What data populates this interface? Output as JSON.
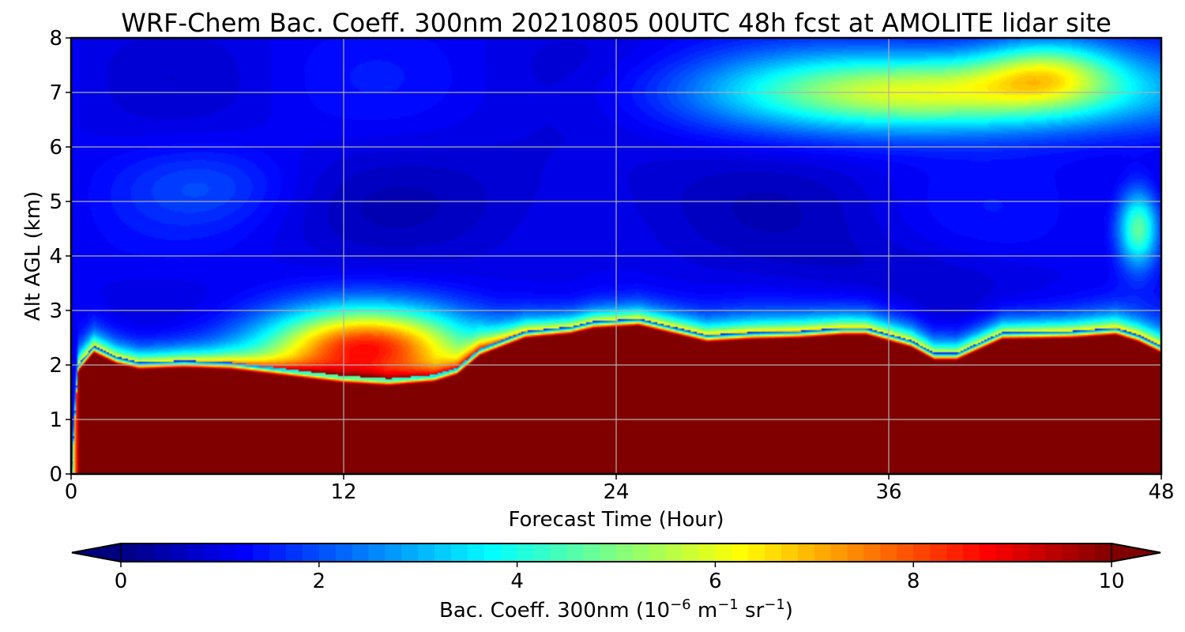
{
  "chart_data": {
    "type": "heatmap",
    "title": "WRF-Chem Bac. Coeff. 300nm  20210805 00UTC 48h fcst at AMOLITE lidar site",
    "xlabel": "Forecast Time (Hour)",
    "ylabel": "Alt AGL (km)",
    "xlim": [
      0,
      48
    ],
    "ylim": [
      0,
      8
    ],
    "xticks": [
      0,
      12,
      24,
      36,
      48
    ],
    "yticks": [
      0,
      1,
      2,
      3,
      4,
      5,
      6,
      7,
      8
    ],
    "grid": true,
    "colormap": "jet",
    "colorbar": {
      "label_main": "Bac. Coeff. 300nm  (10",
      "label_exp1": "−6",
      "label_mid": " m",
      "label_exp2": "−1",
      "label_mid2": " sr",
      "label_exp3": "−1",
      "label_end": ")",
      "range": [
        0,
        10
      ],
      "ticks": [
        0,
        2,
        4,
        6,
        8,
        10
      ],
      "extend": "both",
      "orientation": "horizontal"
    },
    "boundary_layer_top_km": [
      [
        0,
        0
      ],
      [
        0.3,
        2.0
      ],
      [
        1,
        2.35
      ],
      [
        2,
        2.15
      ],
      [
        3,
        2.05
      ],
      [
        5,
        2.08
      ],
      [
        7,
        2.05
      ],
      [
        10,
        1.9
      ],
      [
        12,
        1.8
      ],
      [
        14,
        1.75
      ],
      [
        16,
        1.82
      ],
      [
        17,
        1.95
      ],
      [
        18,
        2.3
      ],
      [
        20,
        2.62
      ],
      [
        22,
        2.7
      ],
      [
        23,
        2.8
      ],
      [
        25,
        2.85
      ],
      [
        26,
        2.75
      ],
      [
        28,
        2.55
      ],
      [
        30,
        2.6
      ],
      [
        32,
        2.62
      ],
      [
        34,
        2.68
      ],
      [
        35,
        2.68
      ],
      [
        37,
        2.45
      ],
      [
        38,
        2.22
      ],
      [
        39,
        2.22
      ],
      [
        41,
        2.6
      ],
      [
        44,
        2.62
      ],
      [
        46,
        2.68
      ],
      [
        47,
        2.55
      ],
      [
        48,
        2.35
      ]
    ],
    "aerosol_features": [
      {
        "x_range": [
          8,
          18
        ],
        "z_km": 2.35,
        "peak_value": 8.0
      },
      {
        "x_range": [
          28,
          48
        ],
        "z_km": 7.0,
        "peak_value": 6.3
      },
      {
        "x_range": [
          46,
          48
        ],
        "z_km": 4.5,
        "peak_value": 5.0
      },
      {
        "x_range": [
          2,
          10
        ],
        "z_km": 5.3,
        "peak_value": 1.8
      }
    ],
    "value_range": [
      0,
      10
    ]
  }
}
